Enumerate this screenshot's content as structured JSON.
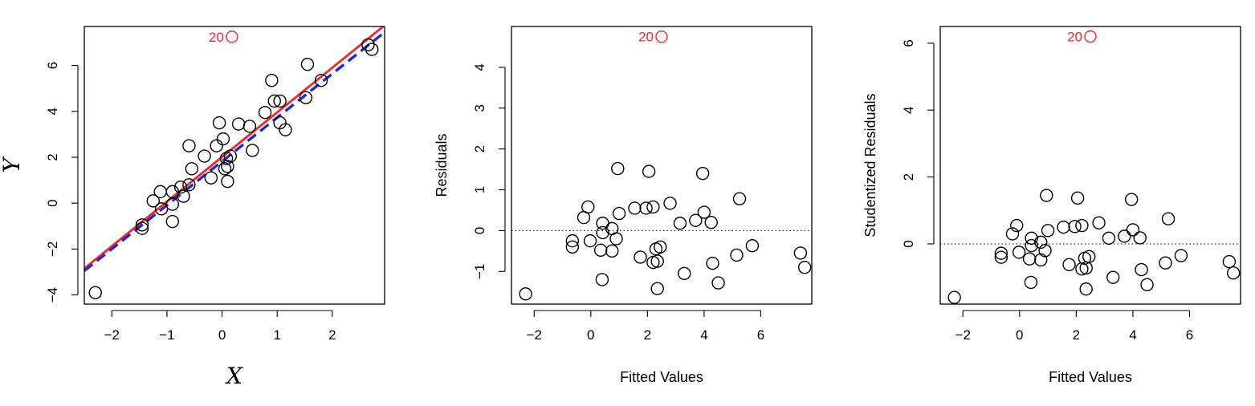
{
  "colors": {
    "outlier": "#ff2020",
    "ls_fit": "#ff2020",
    "fit_no_outlier": "#1a2bd8",
    "points": "#000000"
  },
  "chart_data": [
    {
      "type": "scatter",
      "xlabel": "X",
      "ylabel": "Y",
      "xlim": [
        -2.5,
        2.95
      ],
      "ylim": [
        -4.4,
        7.7
      ],
      "xticks": [
        -2,
        -1,
        0,
        1,
        2
      ],
      "yticks": [
        -4,
        -2,
        0,
        2,
        4,
        6
      ],
      "xtick_labels": [
        "−2",
        "−1",
        "0",
        "1",
        "2"
      ],
      "ytick_labels": [
        "−4",
        "−2",
        "0",
        "2",
        "4",
        "6"
      ],
      "outlier": {
        "label": "20",
        "x": 0.18,
        "y": 7.25
      },
      "lines": [
        {
          "name": "least-squares-fit",
          "style": "solid",
          "color": "ls_fit",
          "x": [
            -2.5,
            2.95
          ],
          "y": [
            -2.85,
            7.75
          ]
        },
        {
          "name": "fit-without-outlier",
          "style": "dashed",
          "color": "fit_no_outlier",
          "x": [
            -2.5,
            2.95
          ],
          "y": [
            -2.95,
            7.45
          ]
        }
      ],
      "points": [
        [
          -2.3,
          -3.9
        ],
        [
          -1.45,
          -1.1
        ],
        [
          -1.45,
          -0.95
        ],
        [
          -1.25,
          0.1
        ],
        [
          -1.12,
          0.5
        ],
        [
          -1.1,
          -0.25
        ],
        [
          -0.9,
          -0.8
        ],
        [
          -0.9,
          -0.05
        ],
        [
          -0.9,
          0.5
        ],
        [
          -0.75,
          0.7
        ],
        [
          -0.7,
          0.3
        ],
        [
          -0.6,
          0.8
        ],
        [
          -0.55,
          1.5
        ],
        [
          -0.6,
          2.5
        ],
        [
          -0.32,
          2.05
        ],
        [
          -0.2,
          1.1
        ],
        [
          -0.1,
          2.5
        ],
        [
          -0.05,
          3.5
        ],
        [
          0.02,
          2.8
        ],
        [
          0.05,
          1.5
        ],
        [
          0.08,
          1.95
        ],
        [
          0.1,
          1.6
        ],
        [
          0.1,
          0.95
        ],
        [
          0.15,
          2.05
        ],
        [
          0.3,
          3.45
        ],
        [
          0.5,
          3.35
        ],
        [
          0.55,
          2.3
        ],
        [
          0.78,
          3.95
        ],
        [
          0.9,
          5.35
        ],
        [
          0.95,
          4.45
        ],
        [
          1.05,
          4.45
        ],
        [
          1.05,
          3.5
        ],
        [
          1.15,
          3.2
        ],
        [
          1.52,
          4.6
        ],
        [
          1.55,
          6.05
        ],
        [
          1.8,
          5.35
        ],
        [
          2.65,
          6.9
        ],
        [
          2.72,
          6.7
        ]
      ]
    },
    {
      "type": "scatter",
      "xlabel": "Fitted Values",
      "ylabel": "Residuals",
      "xlim": [
        -2.8,
        7.8
      ],
      "ylim": [
        -1.8,
        5.0
      ],
      "xticks": [
        -2,
        0,
        2,
        4,
        6
      ],
      "yticks": [
        -1,
        0,
        1,
        2,
        3,
        4
      ],
      "xtick_labels": [
        "−2",
        "0",
        "2",
        "4",
        "6"
      ],
      "ytick_labels": [
        "−1",
        "0",
        "1",
        "2",
        "3",
        "4"
      ],
      "hline": 0,
      "outlier": {
        "label": "20",
        "x": 2.5,
        "y": 4.75
      },
      "points": [
        [
          -2.3,
          -1.55
        ],
        [
          -0.65,
          -0.4
        ],
        [
          -0.65,
          -0.25
        ],
        [
          -0.25,
          0.32
        ],
        [
          -0.1,
          0.58
        ],
        [
          -0.02,
          -0.25
        ],
        [
          0.35,
          -0.48
        ],
        [
          0.42,
          0.18
        ],
        [
          0.42,
          -0.05
        ],
        [
          0.4,
          -1.2
        ],
        [
          0.75,
          0.05
        ],
        [
          0.75,
          -0.5
        ],
        [
          0.9,
          -0.2
        ],
        [
          0.95,
          1.52
        ],
        [
          1.0,
          0.42
        ],
        [
          1.55,
          0.55
        ],
        [
          1.75,
          -0.65
        ],
        [
          1.95,
          0.55
        ],
        [
          2.05,
          1.45
        ],
        [
          2.2,
          0.58
        ],
        [
          2.2,
          -0.78
        ],
        [
          2.3,
          -0.45
        ],
        [
          2.35,
          -0.75
        ],
        [
          2.35,
          -1.42
        ],
        [
          2.45,
          -0.4
        ],
        [
          2.8,
          0.67
        ],
        [
          3.15,
          0.18
        ],
        [
          3.3,
          -1.05
        ],
        [
          3.7,
          0.25
        ],
        [
          3.95,
          1.4
        ],
        [
          4.0,
          0.45
        ],
        [
          4.25,
          0.2
        ],
        [
          4.3,
          -0.8
        ],
        [
          4.5,
          -1.28
        ],
        [
          5.15,
          -0.6
        ],
        [
          5.25,
          0.78
        ],
        [
          5.7,
          -0.37
        ],
        [
          7.4,
          -0.55
        ],
        [
          7.55,
          -0.9
        ]
      ]
    },
    {
      "type": "scatter",
      "xlabel": "Fitted Values",
      "ylabel": "Studentized Residuals",
      "xlim": [
        -2.8,
        7.8
      ],
      "ylim": [
        -1.8,
        6.5
      ],
      "xticks": [
        -2,
        0,
        2,
        4,
        6
      ],
      "yticks": [
        0,
        2,
        4,
        6
      ],
      "xtick_labels": [
        "−2",
        "0",
        "2",
        "4",
        "6"
      ],
      "ytick_labels": [
        "0",
        "2",
        "4",
        "6"
      ],
      "hline": 0,
      "outlier": {
        "label": "20",
        "x": 2.5,
        "y": 6.2
      },
      "points": [
        [
          -2.3,
          -1.6
        ],
        [
          -0.65,
          -0.4
        ],
        [
          -0.65,
          -0.28
        ],
        [
          -0.25,
          0.3
        ],
        [
          -0.1,
          0.55
        ],
        [
          -0.02,
          -0.25
        ],
        [
          0.35,
          -0.45
        ],
        [
          0.42,
          0.17
        ],
        [
          0.42,
          -0.05
        ],
        [
          0.4,
          -1.15
        ],
        [
          0.75,
          0.05
        ],
        [
          0.75,
          -0.48
        ],
        [
          0.9,
          -0.2
        ],
        [
          0.95,
          1.45
        ],
        [
          1.0,
          0.4
        ],
        [
          1.55,
          0.5
        ],
        [
          1.75,
          -0.62
        ],
        [
          1.95,
          0.52
        ],
        [
          2.05,
          1.37
        ],
        [
          2.2,
          0.55
        ],
        [
          2.2,
          -0.75
        ],
        [
          2.3,
          -0.43
        ],
        [
          2.35,
          -0.72
        ],
        [
          2.35,
          -1.35
        ],
        [
          2.45,
          -0.38
        ],
        [
          2.8,
          0.63
        ],
        [
          3.15,
          0.17
        ],
        [
          3.3,
          -1.0
        ],
        [
          3.7,
          0.23
        ],
        [
          3.95,
          1.33
        ],
        [
          4.0,
          0.42
        ],
        [
          4.25,
          0.18
        ],
        [
          4.3,
          -0.77
        ],
        [
          4.5,
          -1.22
        ],
        [
          5.15,
          -0.57
        ],
        [
          5.25,
          0.75
        ],
        [
          5.7,
          -0.35
        ],
        [
          7.4,
          -0.53
        ],
        [
          7.55,
          -0.87
        ]
      ]
    }
  ]
}
